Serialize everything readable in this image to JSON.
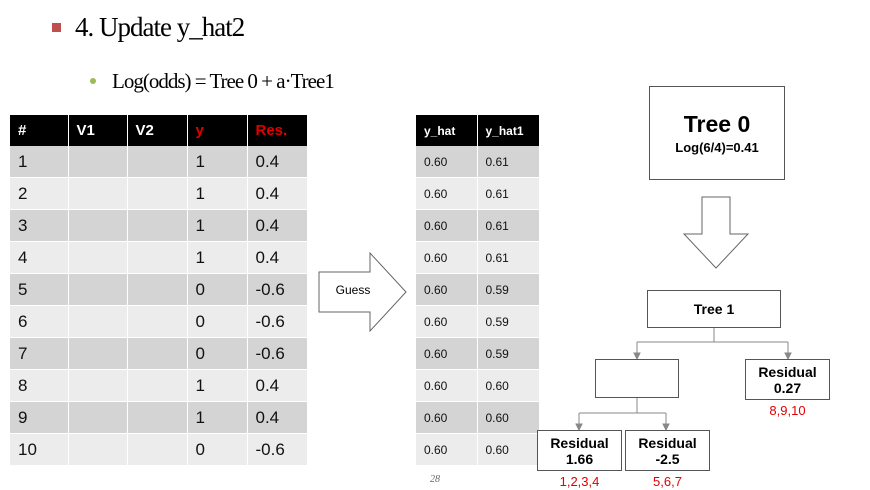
{
  "title": "4. Update y_hat2",
  "subtitle": "Log(odds) = Tree 0 + a·Tree1",
  "main_table": {
    "headers": [
      "#",
      "V1",
      "V2",
      "y",
      "Res."
    ],
    "rows": [
      [
        "1",
        "",
        "",
        "1",
        "0.4"
      ],
      [
        "2",
        "",
        "",
        "1",
        "0.4"
      ],
      [
        "3",
        "",
        "",
        "1",
        "0.4"
      ],
      [
        "4",
        "",
        "",
        "1",
        "0.4"
      ],
      [
        "5",
        "",
        "",
        "0",
        "-0.6"
      ],
      [
        "6",
        "",
        "",
        "0",
        "-0.6"
      ],
      [
        "7",
        "",
        "",
        "0",
        "-0.6"
      ],
      [
        "8",
        "",
        "",
        "1",
        "0.4"
      ],
      [
        "9",
        "",
        "",
        "1",
        "0.4"
      ],
      [
        "10",
        "",
        "",
        "0",
        "-0.6"
      ]
    ]
  },
  "yhat_table": {
    "headers": [
      "y_hat",
      "y_hat1"
    ],
    "rows": [
      [
        "0.60",
        "0.61"
      ],
      [
        "0.60",
        "0.61"
      ],
      [
        "0.60",
        "0.61"
      ],
      [
        "0.60",
        "0.61"
      ],
      [
        "0.60",
        "0.59"
      ],
      [
        "0.60",
        "0.59"
      ],
      [
        "0.60",
        "0.59"
      ],
      [
        "0.60",
        "0.60"
      ],
      [
        "0.60",
        "0.60"
      ],
      [
        "0.60",
        "0.60"
      ]
    ]
  },
  "guess_label": "Guess",
  "tree0": {
    "title": "Tree 0",
    "value": "Log(6/4)=0.41"
  },
  "tree1": {
    "title": "Tree 1"
  },
  "leaf_right": {
    "label": "Residual",
    "value": "0.27",
    "rows": "8,9,10"
  },
  "leaf_left1": {
    "label": "Residual",
    "value": "1.66",
    "rows": "1,2,3,4"
  },
  "leaf_left2": {
    "label": "Residual",
    "value": "-2.5",
    "rows": "5,6,7"
  },
  "page_number": "28",
  "colors": {
    "accent_red": "#e00000",
    "bullet_red": "#c0504d",
    "bullet_green": "#9bbb59",
    "header_black": "#000000"
  }
}
